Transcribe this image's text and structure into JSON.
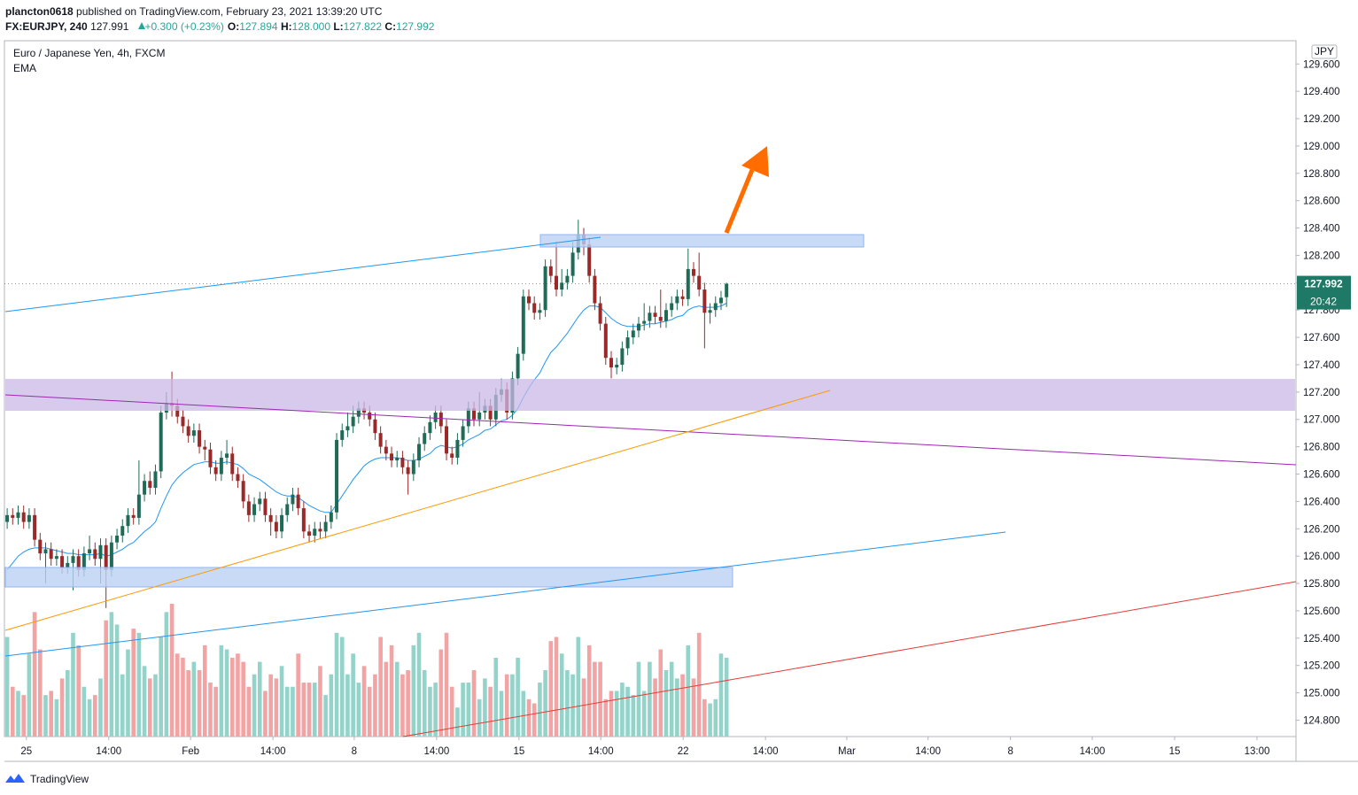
{
  "header": {
    "author": "plancton0618",
    "published": "published on TradingView.com, February 23, 2021 13:39:20 UTC",
    "symbol": "FX:EURJPY, 240",
    "price": "127.991",
    "change": "+0.300 (+0.23%)",
    "ohlc": [
      {
        "label": "O:",
        "value": "127.894"
      },
      {
        "label": "H:",
        "value": "128.000"
      },
      {
        "label": "L:",
        "value": "127.822"
      },
      {
        "label": "C:",
        "value": "127.992"
      }
    ]
  },
  "chart_data": {
    "type": "candlestick",
    "title": "Euro / Japanese Yen, 4h, FXCM",
    "indicator": "EMA",
    "currency": "JPY",
    "last_price_label": "127.992",
    "countdown": "20:42",
    "up_color": "#1f6b57",
    "down_color": "#9a2a2a",
    "volume_up_color": "#93d3c9",
    "volume_down_color": "#f2a3a3",
    "open": [
      126.25,
      126.3,
      126.28,
      126.32,
      126.25,
      126.3,
      126.12,
      126.02,
      126.05,
      125.98,
      126.0,
      125.92,
      125.95,
      126.0,
      125.9,
      126.02,
      126.05,
      125.98,
      126.08,
      125.9,
      126.1,
      126.15,
      126.22,
      126.3,
      126.28,
      126.45,
      126.55,
      126.5,
      126.62,
      127.05,
      127.12,
      127.1,
      127.02,
      126.95,
      126.88,
      126.92,
      126.8,
      126.78,
      126.65,
      126.6,
      126.72,
      126.75,
      126.6,
      126.55,
      126.4,
      126.3,
      126.38,
      126.42,
      126.3,
      126.25,
      126.18,
      126.3,
      126.38,
      126.45,
      126.35,
      126.18,
      126.15,
      126.2,
      126.18,
      126.25,
      126.32,
      126.85,
      126.92,
      126.95,
      127.02,
      127.08,
      127.05,
      127.0,
      126.9,
      126.8,
      126.75,
      126.7,
      126.72,
      126.65,
      126.6,
      126.7,
      126.82,
      126.9,
      126.98,
      127.05,
      126.95,
      126.75,
      126.72,
      126.85,
      126.95,
      127.08,
      127.0,
      127.05,
      127.1,
      127.0,
      127.18,
      127.22,
      127.05,
      127.3,
      127.48,
      127.9,
      127.85,
      127.78,
      127.8,
      128.12,
      128.05,
      127.95,
      128.0,
      128.05,
      128.22,
      128.35,
      128.28,
      128.05,
      127.85,
      127.7,
      127.45,
      127.38,
      127.4,
      127.52,
      127.6,
      127.65,
      127.7,
      127.72,
      127.78,
      127.75,
      127.72,
      127.8,
      127.85,
      127.9,
      127.88,
      128.1,
      128.05,
      127.95,
      127.78,
      127.8,
      127.85,
      127.894
    ],
    "high": [
      126.35,
      126.35,
      126.37,
      126.37,
      126.35,
      126.35,
      126.17,
      126.1,
      126.1,
      126.05,
      126.05,
      126.0,
      126.05,
      126.05,
      126.07,
      126.15,
      126.1,
      126.13,
      126.13,
      126.15,
      126.2,
      126.27,
      126.35,
      126.35,
      126.7,
      126.6,
      126.62,
      126.67,
      127.1,
      127.2,
      127.35,
      127.15,
      127.07,
      127.0,
      126.97,
      126.97,
      126.85,
      126.83,
      126.7,
      126.77,
      126.85,
      126.8,
      126.65,
      126.6,
      126.45,
      126.43,
      126.47,
      126.47,
      126.35,
      126.3,
      126.35,
      126.43,
      126.5,
      126.5,
      126.4,
      126.23,
      126.25,
      126.25,
      126.3,
      126.37,
      126.9,
      126.97,
      127.05,
      127.1,
      127.13,
      127.13,
      127.1,
      127.05,
      126.95,
      126.85,
      126.8,
      126.77,
      126.77,
      126.7,
      126.75,
      126.87,
      126.95,
      127.03,
      127.1,
      127.1,
      127.0,
      126.8,
      126.9,
      127.0,
      127.13,
      127.13,
      127.2,
      127.15,
      127.15,
      127.23,
      127.3,
      127.27,
      127.35,
      127.53,
      127.95,
      127.95,
      127.9,
      127.85,
      128.17,
      128.17,
      128.3,
      128.1,
      128.1,
      128.3,
      128.46,
      128.4,
      128.33,
      128.1,
      127.9,
      127.75,
      127.5,
      127.45,
      127.57,
      127.65,
      127.7,
      127.75,
      127.85,
      127.83,
      127.83,
      127.95,
      127.85,
      127.9,
      127.95,
      127.95,
      128.25,
      128.15,
      128.22,
      128.0,
      127.85,
      127.9,
      127.94,
      128.0
    ],
    "low": [
      126.2,
      126.23,
      126.23,
      126.2,
      126.2,
      126.07,
      125.97,
      125.8,
      125.93,
      125.93,
      125.87,
      125.87,
      125.75,
      125.85,
      125.85,
      125.97,
      125.93,
      125.8,
      125.62,
      125.85,
      126.05,
      126.1,
      126.17,
      126.23,
      126.23,
      126.4,
      126.45,
      126.45,
      126.57,
      127.0,
      127.02,
      126.97,
      126.9,
      126.83,
      126.83,
      126.75,
      126.7,
      126.6,
      126.55,
      126.55,
      126.67,
      126.55,
      126.5,
      126.35,
      126.25,
      126.25,
      126.33,
      126.25,
      126.15,
      126.13,
      126.13,
      126.25,
      126.33,
      126.3,
      126.13,
      126.1,
      126.1,
      126.13,
      126.13,
      126.2,
      126.27,
      126.8,
      126.87,
      126.9,
      126.97,
      127.0,
      126.95,
      126.85,
      126.75,
      126.7,
      126.65,
      126.65,
      126.6,
      126.45,
      126.55,
      126.65,
      126.77,
      126.85,
      126.93,
      126.9,
      126.7,
      126.67,
      126.67,
      126.8,
      126.9,
      126.95,
      126.95,
      127.0,
      126.95,
      126.95,
      127.13,
      127.0,
      127.0,
      127.25,
      127.43,
      127.8,
      127.73,
      127.73,
      127.75,
      128.0,
      127.9,
      127.9,
      127.95,
      128.0,
      128.17,
      128.2,
      128.0,
      127.8,
      127.65,
      127.4,
      127.3,
      127.33,
      127.35,
      127.47,
      127.55,
      127.6,
      127.65,
      127.67,
      127.7,
      127.67,
      127.67,
      127.75,
      127.8,
      127.83,
      127.83,
      128.0,
      127.9,
      127.52,
      127.7,
      127.75,
      127.8,
      127.822
    ],
    "close": [
      126.3,
      126.28,
      126.32,
      126.25,
      126.3,
      126.12,
      126.02,
      126.05,
      125.98,
      126.0,
      125.92,
      125.95,
      126.0,
      125.9,
      126.02,
      126.05,
      125.98,
      126.08,
      125.9,
      126.1,
      126.15,
      126.22,
      126.3,
      126.28,
      126.45,
      126.55,
      126.5,
      126.62,
      127.05,
      127.12,
      127.1,
      127.02,
      126.95,
      126.88,
      126.92,
      126.8,
      126.78,
      126.65,
      126.6,
      126.72,
      126.75,
      126.6,
      126.55,
      126.4,
      126.3,
      126.38,
      126.42,
      126.3,
      126.25,
      126.18,
      126.3,
      126.38,
      126.45,
      126.35,
      126.18,
      126.15,
      126.2,
      126.18,
      126.25,
      126.32,
      126.85,
      126.92,
      126.95,
      127.02,
      127.08,
      127.05,
      127.0,
      126.9,
      126.8,
      126.75,
      126.7,
      126.72,
      126.65,
      126.6,
      126.7,
      126.82,
      126.9,
      126.98,
      127.05,
      126.95,
      126.75,
      126.72,
      126.85,
      126.95,
      127.08,
      127.0,
      127.05,
      127.1,
      127.0,
      127.18,
      127.22,
      127.05,
      127.3,
      127.48,
      127.9,
      127.85,
      127.78,
      127.8,
      128.12,
      128.05,
      127.95,
      128.0,
      128.05,
      128.22,
      128.35,
      128.28,
      128.05,
      127.85,
      127.7,
      127.45,
      127.38,
      127.4,
      127.52,
      127.6,
      127.65,
      127.7,
      127.72,
      127.78,
      127.75,
      127.72,
      127.8,
      127.85,
      127.9,
      127.88,
      128.1,
      128.05,
      127.95,
      127.78,
      127.8,
      127.85,
      127.89,
      127.992
    ],
    "volume": [
      120,
      60,
      55,
      50,
      100,
      150,
      105,
      50,
      55,
      45,
      70,
      80,
      125,
      110,
      60,
      45,
      50,
      70,
      140,
      150,
      135,
      75,
      105,
      130,
      125,
      85,
      70,
      75,
      120,
      150,
      160,
      100,
      95,
      80,
      90,
      80,
      110,
      65,
      60,
      110,
      105,
      95,
      100,
      90,
      60,
      75,
      90,
      55,
      75,
      70,
      85,
      60,
      60,
      100,
      65,
      65,
      65,
      85,
      50,
      75,
      125,
      120,
      75,
      100,
      65,
      85,
      60,
      75,
      120,
      90,
      110,
      90,
      75,
      80,
      110,
      125,
      80,
      60,
      65,
      105,
      125,
      60,
      35,
      65,
      65,
      80,
      45,
      70,
      60,
      95,
      55,
      75,
      75,
      95,
      55,
      45,
      40,
      65,
      80,
      115,
      120,
      100,
      80,
      75,
      120,
      70,
      110,
      90,
      90,
      45,
      55,
      55,
      65,
      60,
      50,
      90,
      55,
      90,
      70,
      105,
      80,
      90,
      70,
      75,
      110,
      70,
      125,
      45,
      40,
      45,
      100,
      95
    ],
    "ema": {
      "color": "#2196f3",
      "values": [
        125.9,
        125.95,
        126.0,
        126.03,
        126.05,
        126.06,
        126.06,
        126.06,
        126.05,
        126.04,
        126.03,
        126.02,
        126.02,
        126.01,
        126.01,
        126.01,
        126.01,
        126.02,
        126.0,
        126.01,
        126.03,
        126.05,
        126.08,
        126.1,
        126.14,
        126.18,
        126.21,
        126.25,
        126.35,
        126.44,
        126.52,
        126.57,
        126.61,
        126.64,
        126.67,
        126.68,
        126.69,
        126.69,
        126.68,
        126.68,
        126.69,
        126.68,
        126.67,
        126.64,
        126.6,
        126.58,
        126.56,
        126.53,
        126.5,
        126.47,
        126.45,
        126.44,
        126.44,
        126.43,
        126.4,
        126.37,
        126.35,
        126.33,
        126.32,
        126.32,
        126.38,
        126.44,
        126.5,
        126.56,
        126.61,
        126.66,
        126.69,
        126.71,
        126.72,
        126.72,
        126.72,
        126.72,
        126.71,
        126.7,
        126.7,
        126.71,
        126.73,
        126.75,
        126.79,
        126.81,
        126.8,
        126.79,
        126.8,
        126.82,
        126.85,
        126.87,
        126.89,
        126.92,
        126.93,
        126.96,
        126.99,
        127.0,
        127.03,
        127.08,
        127.16,
        127.23,
        127.29,
        127.34,
        127.42,
        127.49,
        127.53,
        127.58,
        127.63,
        127.69,
        127.75,
        127.8,
        127.83,
        127.83,
        127.82,
        127.78,
        127.74,
        127.71,
        127.69,
        127.68,
        127.68,
        127.68,
        127.69,
        127.7,
        127.7,
        127.71,
        127.72,
        127.73,
        127.75,
        127.76,
        127.8,
        127.82,
        127.83,
        127.82,
        127.82,
        127.82,
        127.83,
        127.85
      ]
    },
    "ylim": [
      124.68,
      129.77
    ],
    "yticks": [
      {
        "value": 124.8,
        "label": "124.800"
      },
      {
        "value": 125.0,
        "label": "125.000"
      },
      {
        "value": 125.2,
        "label": "125.200"
      },
      {
        "value": 125.4,
        "label": "125.400"
      },
      {
        "value": 125.6,
        "label": "125.600"
      },
      {
        "value": 125.8,
        "label": "125.800"
      },
      {
        "value": 126.0,
        "label": "126.000"
      },
      {
        "value": 126.2,
        "label": "126.200"
      },
      {
        "value": 126.4,
        "label": "126.400"
      },
      {
        "value": 126.6,
        "label": "126.600"
      },
      {
        "value": 126.8,
        "label": "126.800"
      },
      {
        "value": 127.0,
        "label": "127.000"
      },
      {
        "value": 127.2,
        "label": "127.200"
      },
      {
        "value": 127.4,
        "label": "127.400"
      },
      {
        "value": 127.6,
        "label": "127.600"
      },
      {
        "value": 127.8,
        "label": "127.800"
      },
      {
        "value": 128.0,
        "label": "128.000"
      },
      {
        "value": 128.2,
        "label": "128.200"
      },
      {
        "value": 128.4,
        "label": "128.400"
      },
      {
        "value": 128.6,
        "label": "128.600"
      },
      {
        "value": 128.8,
        "label": "128.800"
      },
      {
        "value": 129.0,
        "label": "129.000"
      },
      {
        "value": 129.2,
        "label": "129.200"
      },
      {
        "value": 129.4,
        "label": "129.400"
      },
      {
        "value": 129.6,
        "label": "129.600"
      }
    ],
    "xlim": [
      -0.5,
      234.7
    ],
    "xticks": [
      {
        "value": 3.5,
        "label": "25"
      },
      {
        "value": 18.5,
        "label": "14:00"
      },
      {
        "value": 33.4,
        "label": "Feb"
      },
      {
        "value": 48.4,
        "label": "14:00"
      },
      {
        "value": 63.2,
        "label": "8"
      },
      {
        "value": 78.2,
        "label": "14:00"
      },
      {
        "value": 93.2,
        "label": "15"
      },
      {
        "value": 108.1,
        "label": "14:00"
      },
      {
        "value": 123.1,
        "label": "22"
      },
      {
        "value": 138.1,
        "label": "14:00"
      },
      {
        "value": 152.9,
        "label": "Mar"
      },
      {
        "value": 167.7,
        "label": "14:00"
      },
      {
        "value": 182.7,
        "label": "8"
      },
      {
        "value": 197.6,
        "label": "14:00"
      },
      {
        "value": 212.6,
        "label": "15"
      },
      {
        "value": 227.6,
        "label": "13:00"
      }
    ],
    "grid": false
  },
  "footer": {
    "brand": "TradingView"
  }
}
